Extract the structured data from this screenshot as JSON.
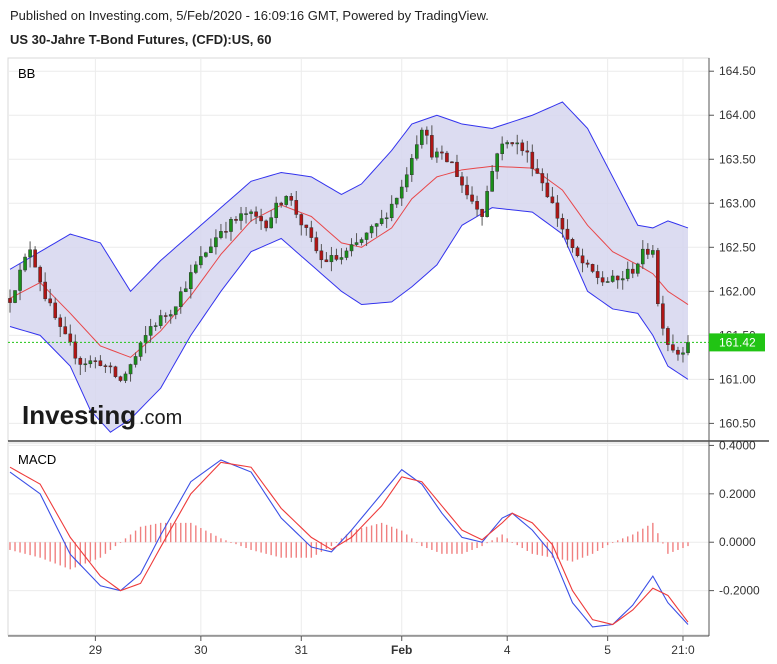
{
  "header": {
    "published": "Published on Investing.com, 5/Feb/2020 - 16:09:16 GMT, Powered by TradingView.",
    "instrument": "US 30-Jahre T-Bond Futures, (CFD):US, 60"
  },
  "watermark": {
    "brand": "Investing",
    "suffix": ".com"
  },
  "colors": {
    "up": "#1a8f1a",
    "down": "#b01515",
    "bb_band": "#3333ee",
    "bb_fill": "#d6d6ef",
    "bb_mid": "#e8474a",
    "macd_line": "#3b4fe6",
    "signal_line": "#ee3b3b",
    "hist": "#f08080",
    "price_tag": "#21c414"
  },
  "chart_data": [
    {
      "type": "candlestick",
      "indicator_label": "BB",
      "ylim": [
        160.3,
        164.65
      ],
      "y_ticks": [
        "164.50",
        "164.00",
        "163.50",
        "163.00",
        "162.50",
        "162.00",
        "161.50",
        "161.00",
        "160.50"
      ],
      "last_price": 161.42,
      "last_price_label": "161.42",
      "x_ticks": [
        "29",
        "30",
        "31",
        "Feb",
        "4",
        "5",
        "21:0"
      ],
      "price_path": [
        [
          0,
          161.92
        ],
        [
          4,
          162.5
        ],
        [
          7,
          161.95
        ],
        [
          10,
          161.55
        ],
        [
          14,
          161.2
        ],
        [
          18,
          161.2
        ],
        [
          22,
          160.98
        ],
        [
          25,
          161.25
        ],
        [
          28,
          161.6
        ],
        [
          32,
          161.78
        ],
        [
          37,
          162.28
        ],
        [
          42,
          162.7
        ],
        [
          47,
          162.88
        ],
        [
          51,
          162.78
        ],
        [
          55,
          163.12
        ],
        [
          58,
          162.78
        ],
        [
          62,
          162.35
        ],
        [
          66,
          162.38
        ],
        [
          70,
          162.58
        ],
        [
          74,
          162.8
        ],
        [
          78,
          163.18
        ],
        [
          80,
          163.55
        ],
        [
          82,
          163.88
        ],
        [
          84,
          163.58
        ],
        [
          88,
          163.45
        ],
        [
          91,
          163.1
        ],
        [
          94,
          162.9
        ],
        [
          97,
          163.6
        ],
        [
          100,
          163.72
        ],
        [
          103,
          163.55
        ],
        [
          106,
          163.25
        ],
        [
          109,
          162.85
        ],
        [
          112,
          162.45
        ],
        [
          115,
          162.25
        ],
        [
          118,
          162.12
        ],
        [
          121,
          162.12
        ],
        [
          124,
          162.25
        ],
        [
          126,
          162.42
        ],
        [
          128,
          162.5
        ],
        [
          129,
          161.85
        ],
        [
          131,
          161.42
        ],
        [
          133,
          161.3
        ],
        [
          135,
          161.42
        ]
      ],
      "bollinger": {
        "upper": [
          [
            0,
            162.25
          ],
          [
            6,
            162.45
          ],
          [
            12,
            162.65
          ],
          [
            18,
            162.55
          ],
          [
            24,
            162.0
          ],
          [
            30,
            162.35
          ],
          [
            36,
            162.65
          ],
          [
            42,
            162.95
          ],
          [
            48,
            163.25
          ],
          [
            54,
            163.35
          ],
          [
            60,
            163.3
          ],
          [
            66,
            163.1
          ],
          [
            70,
            163.22
          ],
          [
            76,
            163.6
          ],
          [
            80,
            163.9
          ],
          [
            85,
            164.0
          ],
          [
            90,
            163.9
          ],
          [
            96,
            163.85
          ],
          [
            104,
            164.0
          ],
          [
            110,
            164.15
          ],
          [
            115,
            163.85
          ],
          [
            120,
            163.3
          ],
          [
            125,
            162.75
          ],
          [
            128,
            162.72
          ],
          [
            131,
            162.8
          ],
          [
            135,
            162.72
          ]
        ],
        "middle": [
          [
            0,
            161.92
          ],
          [
            6,
            162.1
          ],
          [
            12,
            161.75
          ],
          [
            18,
            161.38
          ],
          [
            24,
            161.25
          ],
          [
            30,
            161.55
          ],
          [
            36,
            161.95
          ],
          [
            42,
            162.42
          ],
          [
            48,
            162.8
          ],
          [
            54,
            162.98
          ],
          [
            60,
            162.85
          ],
          [
            66,
            162.55
          ],
          [
            70,
            162.5
          ],
          [
            76,
            162.72
          ],
          [
            80,
            163.05
          ],
          [
            85,
            163.3
          ],
          [
            90,
            163.38
          ],
          [
            96,
            163.42
          ],
          [
            104,
            163.4
          ],
          [
            110,
            163.15
          ],
          [
            115,
            162.75
          ],
          [
            120,
            162.45
          ],
          [
            125,
            162.3
          ],
          [
            128,
            162.2
          ],
          [
            131,
            162.0
          ],
          [
            135,
            161.85
          ]
        ],
        "lower": [
          [
            0,
            161.6
          ],
          [
            6,
            161.5
          ],
          [
            12,
            161.15
          ],
          [
            16,
            160.65
          ],
          [
            20,
            160.4
          ],
          [
            24,
            160.55
          ],
          [
            30,
            160.9
          ],
          [
            36,
            161.5
          ],
          [
            42,
            162.0
          ],
          [
            48,
            162.45
          ],
          [
            54,
            162.6
          ],
          [
            60,
            162.3
          ],
          [
            66,
            162.0
          ],
          [
            70,
            161.85
          ],
          [
            76,
            161.88
          ],
          [
            80,
            162.05
          ],
          [
            85,
            162.3
          ],
          [
            90,
            162.75
          ],
          [
            96,
            162.95
          ],
          [
            104,
            162.9
          ],
          [
            110,
            162.65
          ],
          [
            115,
            162.0
          ],
          [
            120,
            161.8
          ],
          [
            125,
            161.75
          ],
          [
            128,
            161.5
          ],
          [
            131,
            161.15
          ],
          [
            135,
            161.0
          ]
        ]
      }
    },
    {
      "type": "line",
      "indicator_label": "MACD",
      "ylim": [
        -0.3875,
        0.41
      ],
      "y_ticks": [
        "0.4000",
        "0.2000",
        "0.0000",
        "-0.2000"
      ],
      "series": [
        {
          "values": [
            [
              0,
              0.29
            ],
            [
              6,
              0.2
            ],
            [
              12,
              -0.05
            ],
            [
              18,
              -0.18
            ],
            [
              22,
              -0.2
            ],
            [
              26,
              -0.13
            ],
            [
              30,
              0.03
            ],
            [
              36,
              0.25
            ],
            [
              42,
              0.34
            ],
            [
              48,
              0.29
            ],
            [
              54,
              0.1
            ],
            [
              60,
              -0.02
            ],
            [
              64,
              -0.04
            ],
            [
              68,
              0.05
            ],
            [
              74,
              0.2
            ],
            [
              78,
              0.3
            ],
            [
              82,
              0.24
            ],
            [
              86,
              0.12
            ],
            [
              90,
              0.02
            ],
            [
              94,
              0.0
            ],
            [
              98,
              0.1
            ],
            [
              100,
              0.12
            ],
            [
              104,
              0.05
            ],
            [
              108,
              -0.05
            ],
            [
              112,
              -0.25
            ],
            [
              116,
              -0.35
            ],
            [
              120,
              -0.34
            ],
            [
              124,
              -0.26
            ],
            [
              128,
              -0.14
            ],
            [
              131,
              -0.25
            ],
            [
              135,
              -0.34
            ]
          ]
        },
        {
          "values": [
            [
              0,
              0.31
            ],
            [
              6,
              0.24
            ],
            [
              12,
              0.02
            ],
            [
              18,
              -0.14
            ],
            [
              22,
              -0.2
            ],
            [
              26,
              -0.17
            ],
            [
              30,
              -0.02
            ],
            [
              36,
              0.2
            ],
            [
              42,
              0.33
            ],
            [
              48,
              0.31
            ],
            [
              54,
              0.14
            ],
            [
              60,
              0.02
            ],
            [
              64,
              -0.03
            ],
            [
              68,
              0.02
            ],
            [
              74,
              0.15
            ],
            [
              78,
              0.27
            ],
            [
              82,
              0.25
            ],
            [
              86,
              0.15
            ],
            [
              90,
              0.05
            ],
            [
              94,
              0.01
            ],
            [
              98,
              0.08
            ],
            [
              100,
              0.12
            ],
            [
              104,
              0.08
            ],
            [
              108,
              -0.01
            ],
            [
              112,
              -0.2
            ],
            [
              116,
              -0.32
            ],
            [
              120,
              -0.34
            ],
            [
              124,
              -0.28
            ],
            [
              128,
              -0.19
            ],
            [
              131,
              -0.22
            ],
            [
              135,
              -0.33
            ]
          ]
        }
      ]
    }
  ]
}
